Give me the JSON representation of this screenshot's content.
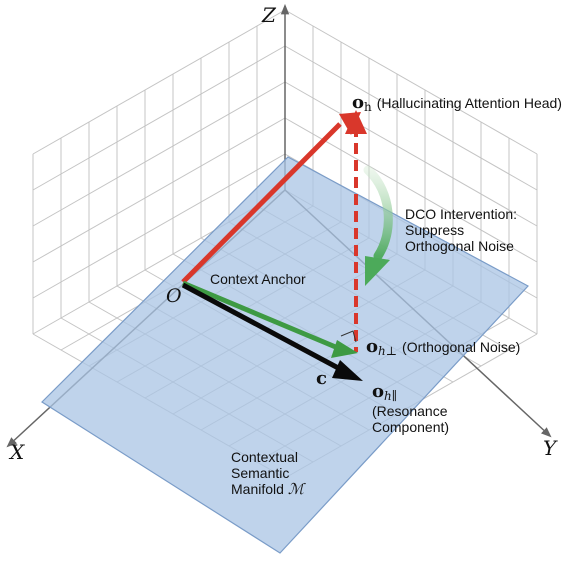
{
  "axes": {
    "z": "Z",
    "x": "X",
    "y": "Y",
    "origin": "O"
  },
  "vectors": {
    "oh_symbol": "o",
    "oh_sub": "h",
    "oh_desc": "(Hallucinating Attention Head)",
    "ortho_symbol": "o",
    "ortho_sub": "h⊥",
    "ortho_desc": "(Orthogonal Noise)",
    "res_symbol": "o",
    "res_sub": "h∥",
    "res_desc_line1": "(Resonance",
    "res_desc_line2": "Component)",
    "c_label": "c"
  },
  "labels": {
    "context_anchor": "Context Anchor",
    "dco_line1": "DCO Intervention:",
    "dco_line2": "Suppress",
    "dco_line3": "Orthogonal Noise",
    "manifold_line1": "Contextual",
    "manifold_line2": "Semantic",
    "manifold_line3": "Manifold",
    "manifold_symbol": "ℳ"
  },
  "colors": {
    "plane_fill": "#a9c4e4",
    "plane_stroke": "#7a9cc8",
    "red_vector": "#d9372b",
    "green_vector": "#3e9a43",
    "black_vector": "#0a0a0a",
    "grid": "#c4c4c4",
    "axis": "#666666"
  }
}
